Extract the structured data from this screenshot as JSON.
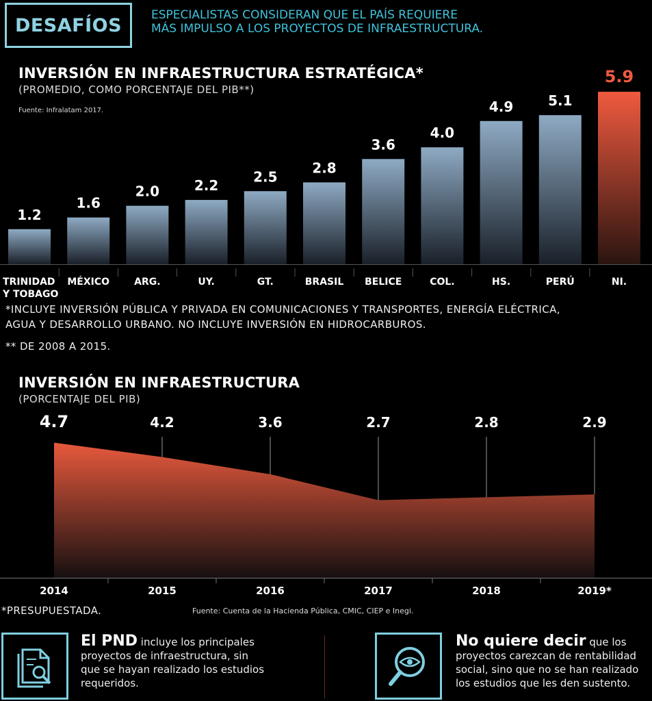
{
  "header": {
    "tag": "DESAFÍOS",
    "headline_lines": [
      "ESPECIALISTAS CONSIDERAN QUE EL PAÍS REQUIERE",
      "MÁS IMPULSO A LOS PROYECTOS DE INFRAESTRUCTURA."
    ]
  },
  "chart_data": [
    {
      "type": "bar",
      "title": "INVERSIÓN EN INFRAESTRUCTURA ESTRATÉGICA*",
      "subtitle": "(PROMEDIO, COMO PORCENTAJE DEL PIB**)",
      "source": "Fuente: Infralatam 2017.",
      "categories": [
        "TRINIDAD Y TOBAGO",
        "MÉXICO",
        "ARG.",
        "UY.",
        "GT.",
        "BRASIL",
        "BELICE",
        "COL.",
        "HS.",
        "PERÚ",
        "NI."
      ],
      "values": [
        1.2,
        1.6,
        2.0,
        2.2,
        2.5,
        2.8,
        3.6,
        4.0,
        4.9,
        5.1,
        5.9
      ],
      "value_labels": [
        "1.2",
        "1.6",
        "2.0",
        "2.2",
        "2.5",
        "2.8",
        "3.6",
        "4.0",
        "4.9",
        "5.1",
        "5.9"
      ],
      "highlight_index": 10,
      "colors": {
        "bar_top": "#8eaac3",
        "bar_bottom": "#1a2029",
        "highlight_top": "#f05a3f",
        "highlight_bottom": "#2a1410",
        "highlight_label": "#f05a3f"
      },
      "footnotes": [
        "*INCLUYE INVERSIÓN PÚBLICA Y PRIVADA EN COMUNICACIONES Y TRANSPORTES, ENERGÍA ELÉCTRICA,",
        "AGUA Y DESARROLLO URBANO. NO INCLUYE INVERSIÓN EN HIDROCARBUROS.",
        "** DE 2008 A 2015."
      ]
    },
    {
      "type": "area",
      "title": "INVERSIÓN EN INFRAESTRUCTURA",
      "subtitle": "(PORCENTAJE DEL PIB)",
      "x": [
        "2014",
        "2015",
        "2016",
        "2017",
        "2018",
        "2019*"
      ],
      "values": [
        4.7,
        4.2,
        3.6,
        2.7,
        2.8,
        2.9
      ],
      "value_labels": [
        "4.7",
        "4.2",
        "3.6",
        "2.7",
        "2.8",
        "2.9"
      ],
      "colors": {
        "area_top": "#e8593d",
        "area_bottom": "#161010"
      },
      "footnote": "*PRESUPUESTADA.",
      "source": "Fuente: Cuenta de la Hacienda Pública, CMIC, CIEP e Inegi."
    }
  ],
  "info": [
    {
      "icon": "document-search-icon",
      "bold": "El PND",
      "lines": [
        " incluye los principales",
        "proyectos de infraestructura, sin",
        "que se hayan realizado los estudios",
        "requeridos."
      ]
    },
    {
      "icon": "eye-magnifier-icon",
      "bold": "No quiere decir",
      "lines": [
        " que los",
        "proyectos carezcan de rentabilidad",
        "social, sino que no se han realizado",
        "los estudios que les den sustento."
      ]
    }
  ]
}
